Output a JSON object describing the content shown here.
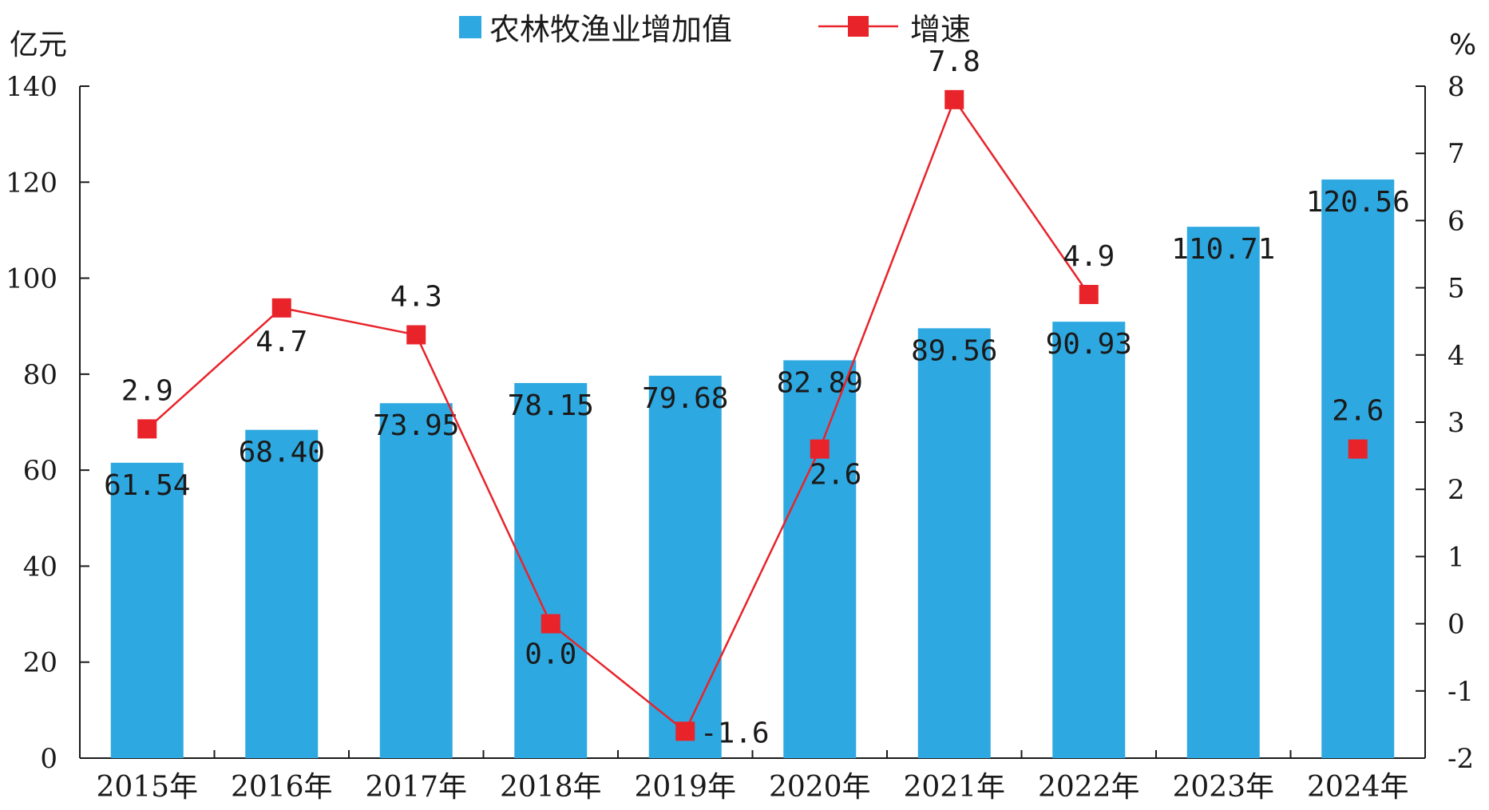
{
  "chart_data": {
    "type": "bar",
    "categories": [
      "2015年",
      "2016年",
      "2017年",
      "2018年",
      "2019年",
      "2020年",
      "2021年",
      "2022年",
      "2023年",
      "2024年"
    ],
    "series": [
      {
        "name": "农林牧渔业增加值",
        "type": "bar",
        "axis": "left",
        "color": "#2ea8e0",
        "values": [
          61.54,
          68.4,
          73.95,
          78.15,
          79.68,
          82.89,
          89.56,
          90.93,
          110.71,
          120.56
        ],
        "labels": [
          "61.54",
          "68.40",
          "73.95",
          "78.15",
          "79.68",
          "82.89",
          "89.56",
          "90.93",
          "110.71",
          "120.56"
        ]
      },
      {
        "name": "增速",
        "type": "line",
        "axis": "right",
        "color": "#e8232a",
        "values": [
          2.9,
          4.7,
          4.3,
          0.0,
          -1.6,
          2.6,
          7.8,
          4.9,
          null,
          2.6
        ],
        "labels": [
          "2.9",
          "4.7",
          "4.3",
          "0.0",
          "-1.6",
          "2.6",
          "7.8",
          "4.9",
          "",
          "2.6"
        ]
      }
    ],
    "y_left": {
      "label": "亿元",
      "ylim": [
        0,
        140
      ],
      "ticks": [
        0,
        20,
        40,
        60,
        80,
        100,
        120,
        140
      ],
      "tick_labels": [
        "0",
        "20",
        "40",
        "60",
        "80",
        "100",
        "120",
        "140"
      ]
    },
    "y_right": {
      "label": "%",
      "ylim": [
        -2,
        8
      ],
      "ticks": [
        -2,
        -1,
        0,
        1,
        2,
        3,
        4,
        5,
        6,
        7,
        8
      ],
      "tick_labels": [
        "-2",
        "-1",
        "0",
        "1",
        "2",
        "3",
        "4",
        "5",
        "6",
        "7",
        "8"
      ]
    },
    "legend": {
      "position": "top-center",
      "items": [
        "农林牧渔业增加值",
        "增速"
      ]
    },
    "grid": false
  }
}
